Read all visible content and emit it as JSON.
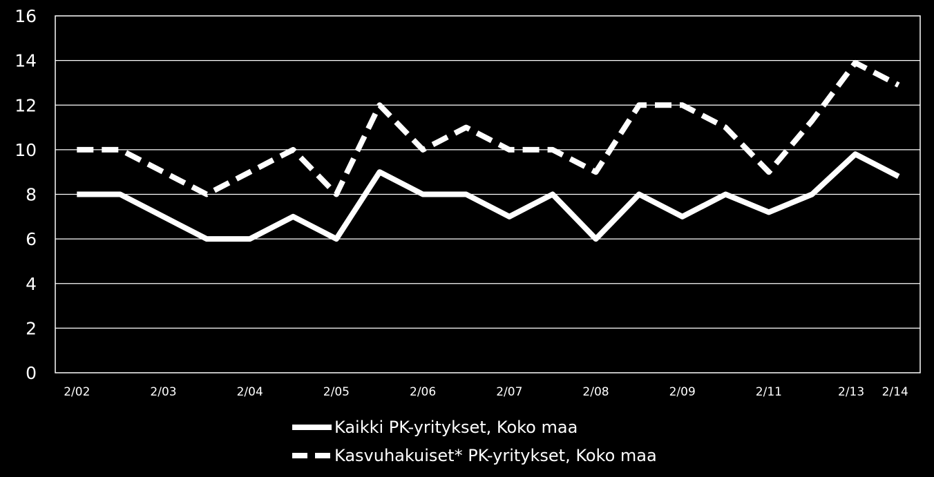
{
  "chart_data": {
    "type": "line",
    "x_tick_labels": [
      "2/02",
      "2/03",
      "2/04",
      "2/05",
      "2/06",
      "2/07",
      "2/08",
      "2/09",
      "2/11",
      "2/13",
      "2/14"
    ],
    "ylim": [
      0,
      16
    ],
    "yticks": [
      0,
      2,
      4,
      6,
      8,
      10,
      12,
      14,
      16
    ],
    "grid": true,
    "legend_position": "bottom",
    "series": [
      {
        "name": "Kaikki PK-yritykset, Koko maa",
        "style": "solid",
        "color": "#ffffff",
        "values": [
          8,
          8,
          7,
          6,
          6,
          7,
          6,
          9,
          8,
          8,
          7,
          8,
          6,
          8,
          7,
          8,
          7.2,
          8,
          9.8,
          8.8
        ]
      },
      {
        "name": "Kasvuhakuiset* PK-yritykset, Koko maa",
        "style": "dashed",
        "color": "#ffffff",
        "values": [
          10,
          10,
          9,
          8,
          9,
          10,
          8,
          12,
          10,
          11,
          10,
          10,
          9,
          12,
          12,
          11,
          9,
          11.3,
          13.9,
          12.9
        ]
      }
    ]
  }
}
